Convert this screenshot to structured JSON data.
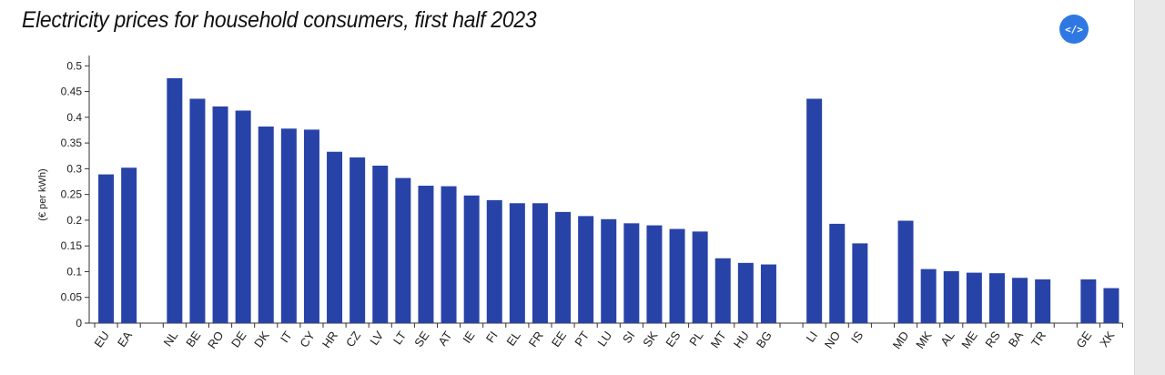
{
  "header": {
    "title": "Electricity prices for household consumers, first half 2023",
    "embed_label": "</>"
  },
  "colors": {
    "bar": "#2843a8",
    "axis": "#333333",
    "embed_button": "#2f78e4"
  },
  "chart_data": {
    "type": "bar",
    "title": "Electricity prices for household consumers, first half 2023",
    "xlabel": "",
    "ylabel": "(€ per kWh)",
    "ylim": [
      0,
      0.52
    ],
    "yticks": [
      "0",
      "0.05",
      "0.1",
      "0.15",
      "0.2",
      "0.25",
      "0.3",
      "0.35",
      "0.4",
      "0.45",
      "0.5"
    ],
    "grid": false,
    "categories": [
      "EU",
      "EA",
      "",
      "NL",
      "BE",
      "RO",
      "DE",
      "DK",
      "IT",
      "CY",
      "HR",
      "CZ",
      "LV",
      "LT",
      "SE",
      "AT",
      "IE",
      "FI",
      "EL",
      "FR",
      "EE",
      "PT",
      "LU",
      "SI",
      "SK",
      "ES",
      "PL",
      "MT",
      "HU",
      "BG",
      "",
      "LI",
      "NO",
      "IS",
      "",
      "MD",
      "MK",
      "AL",
      "ME",
      "RS",
      "BA",
      "TR",
      "",
      "GE",
      "XK"
    ],
    "values": [
      0.289,
      0.302,
      null,
      0.476,
      0.436,
      0.421,
      0.413,
      0.382,
      0.378,
      0.376,
      0.333,
      0.322,
      0.306,
      0.282,
      0.267,
      0.266,
      0.248,
      0.239,
      0.233,
      0.233,
      0.216,
      0.208,
      0.202,
      0.194,
      0.19,
      0.183,
      0.178,
      0.126,
      0.117,
      0.114,
      null,
      0.436,
      0.193,
      0.155,
      null,
      0.199,
      0.105,
      0.101,
      0.098,
      0.097,
      0.088,
      0.085,
      null,
      0.085,
      0.068
    ]
  }
}
